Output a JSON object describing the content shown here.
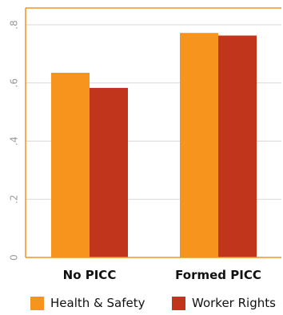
{
  "chart_data": {
    "type": "bar",
    "categories": [
      "No PICC",
      "Formed PICC"
    ],
    "series": [
      {
        "name": "Health & Safety",
        "values": [
          0.635,
          0.772
        ],
        "color": "#F7941D"
      },
      {
        "name": "Worker Rights",
        "values": [
          0.583,
          0.763
        ],
        "color": "#C1351D"
      }
    ],
    "yticks": [
      0,
      0.2,
      0.4,
      0.6,
      0.8
    ],
    "ytick_labels": [
      "0",
      ".2",
      ".4",
      ".6",
      ".8"
    ],
    "ylim": [
      0,
      0.83
    ],
    "grid": true,
    "legend_position": "bottom",
    "frame_color": "#F7941D",
    "grid_color": "#D9D9D9"
  }
}
